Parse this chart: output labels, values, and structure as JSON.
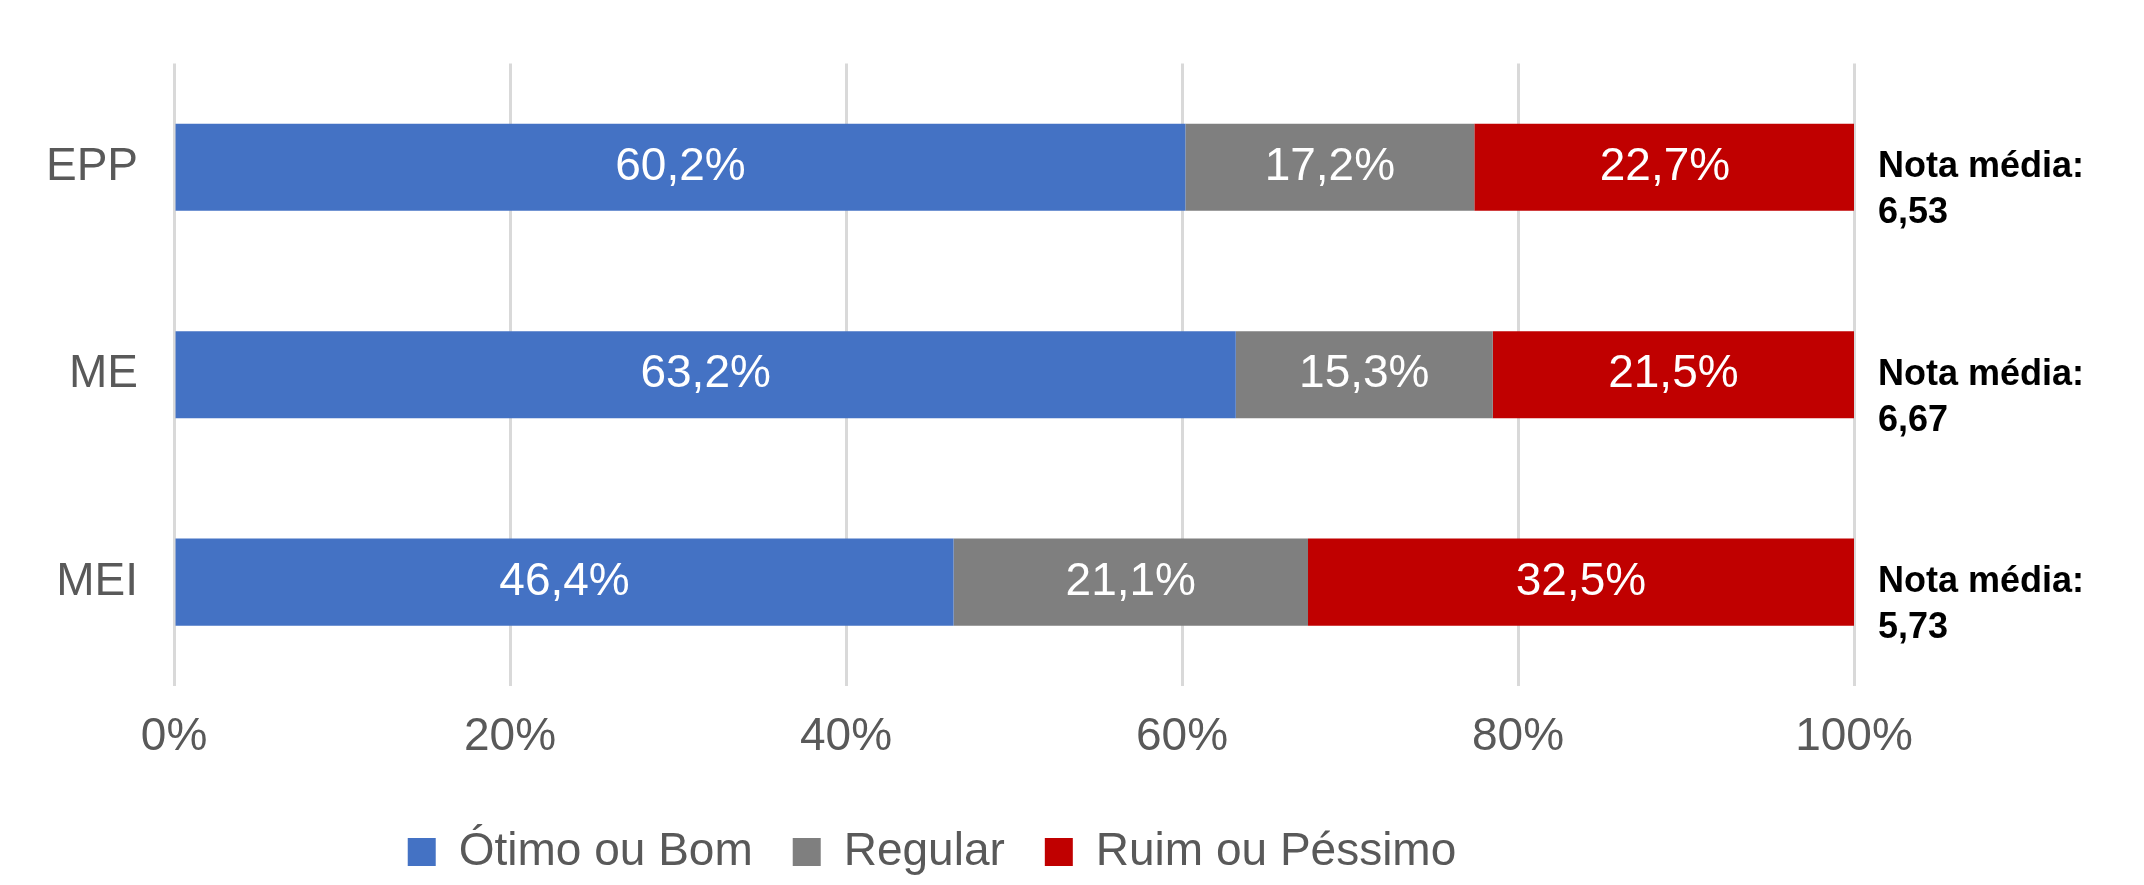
{
  "chart_data": {
    "type": "bar",
    "orientation": "horizontal",
    "stacked": true,
    "categories": [
      "EPP",
      "ME",
      "MEI"
    ],
    "series": [
      {
        "name": "Ótimo ou Bom",
        "color": "#4472c4",
        "values": [
          60.2,
          63.2,
          46.4
        ],
        "value_labels": [
          "60,2%",
          "63,2%",
          "46,4%"
        ]
      },
      {
        "name": "Regular",
        "color": "#7f7f7f",
        "values": [
          17.2,
          15.3,
          21.1
        ],
        "value_labels": [
          "17,2%",
          "15,3%",
          "21,1%"
        ]
      },
      {
        "name": "Ruim ou Péssimo",
        "color": "#c00000",
        "values": [
          22.7,
          21.5,
          32.5
        ],
        "value_labels": [
          "22,7%",
          "21,5%",
          "32,5%"
        ]
      }
    ],
    "xlim": [
      0,
      100
    ],
    "xticks": [
      {
        "value": 0,
        "label": "0%"
      },
      {
        "value": 20,
        "label": "20%"
      },
      {
        "value": 40,
        "label": "40%"
      },
      {
        "value": 60,
        "label": "60%"
      },
      {
        "value": 80,
        "label": "80%"
      },
      {
        "value": 100,
        "label": "100%"
      }
    ],
    "grid": "x",
    "legend": "bottom",
    "annotations": [
      "Nota média:\n6,53",
      "Nota média:\n6,67",
      "Nota média:\n5,73"
    ]
  }
}
